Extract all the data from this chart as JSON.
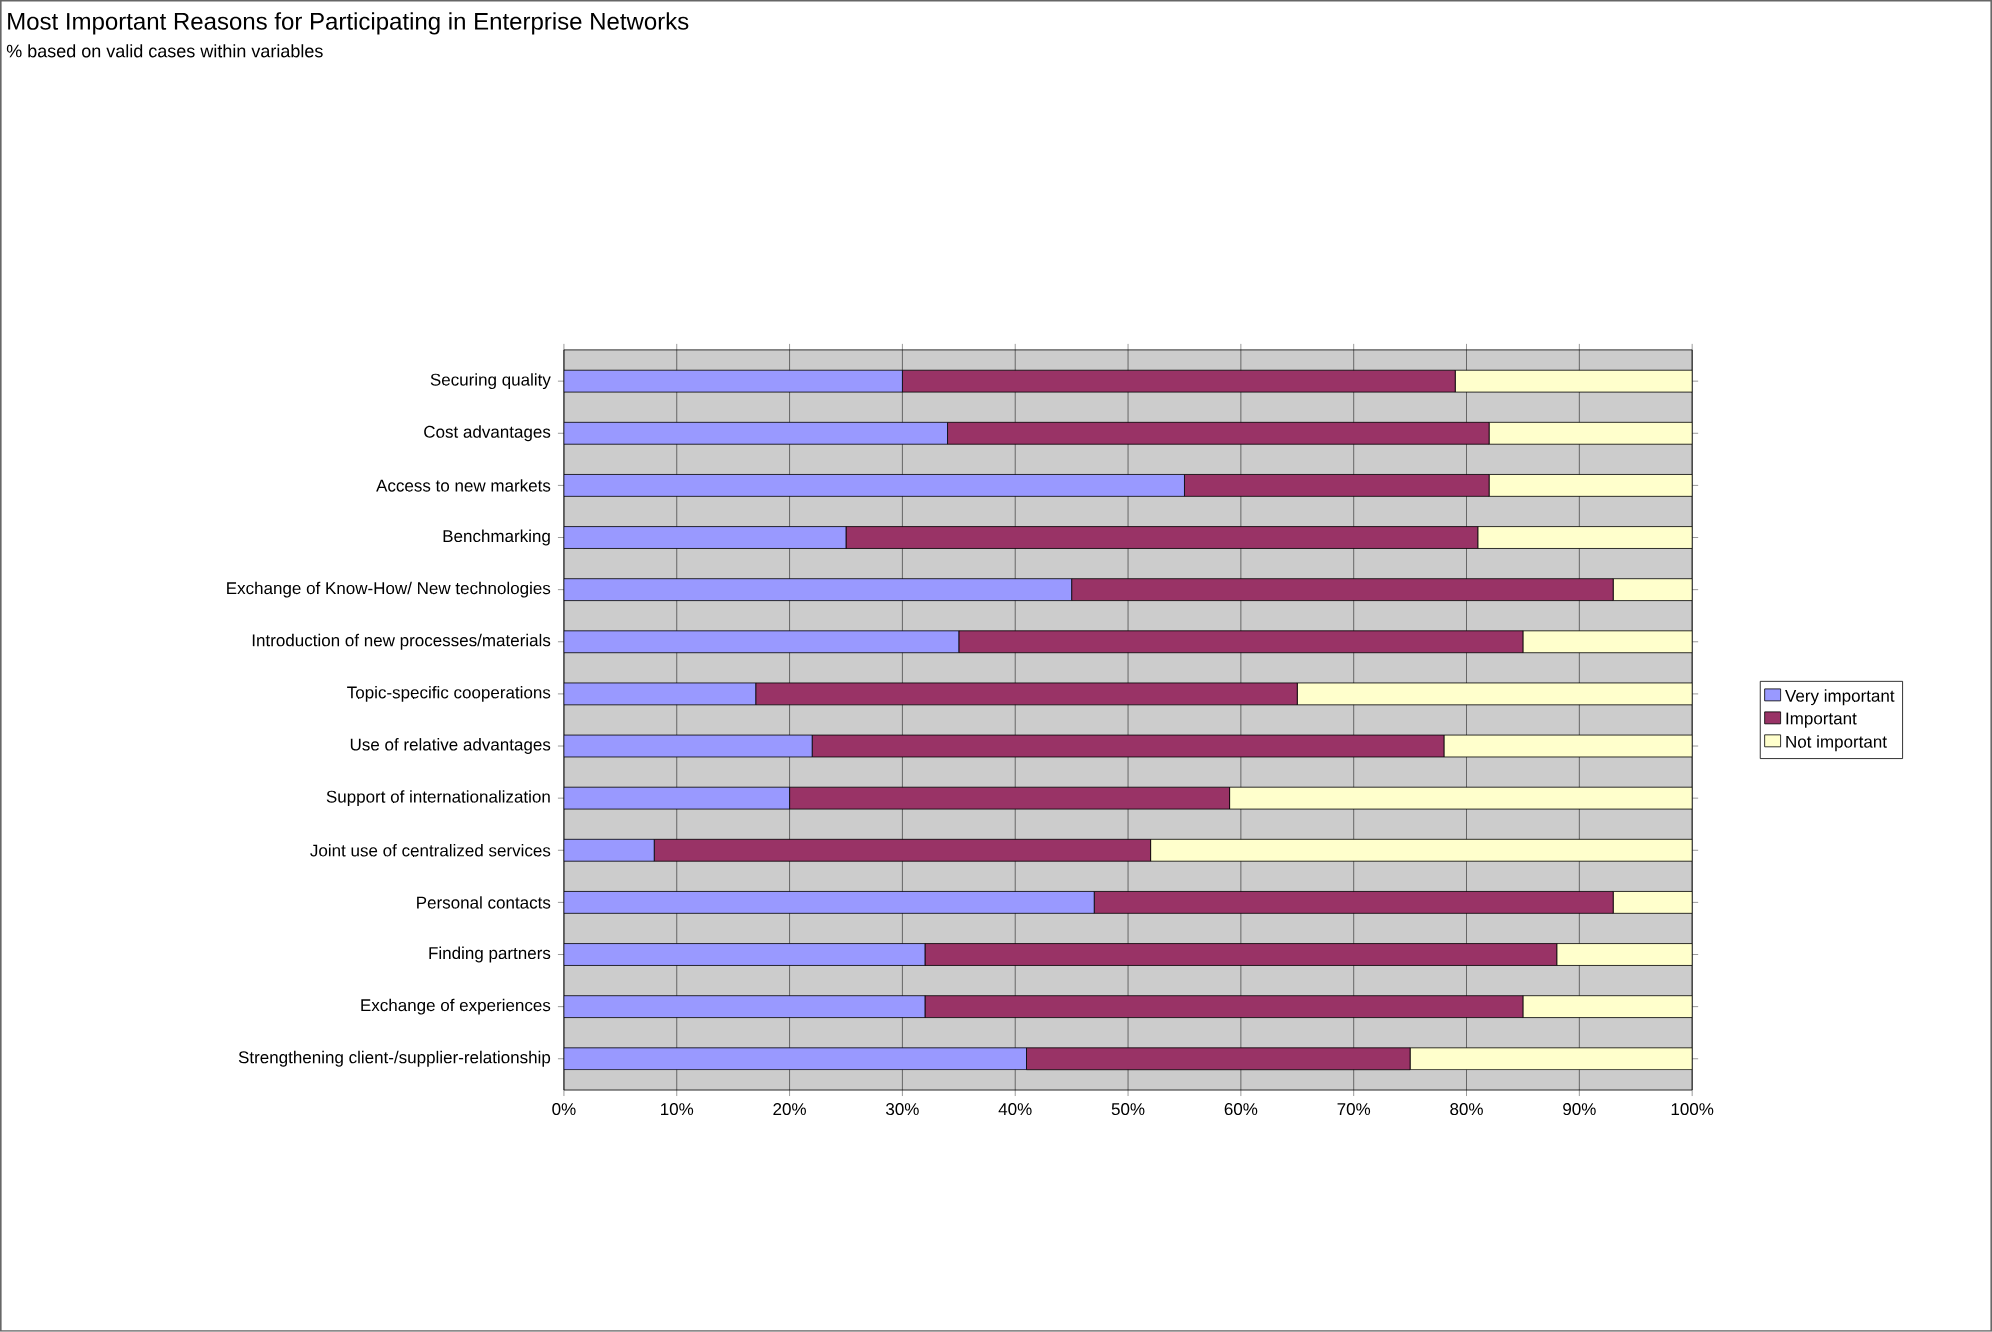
{
  "chart_data": {
    "type": "bar",
    "orientation": "horizontal",
    "stacked": true,
    "title": "Most Important Reasons for Participating in Enterprise Networks",
    "subtitle": "% based on valid cases within variables",
    "categories": [
      "Securing quality",
      "Cost advantages",
      "Access to new markets",
      "Benchmarking",
      "Exchange of Know-How/ New technologies",
      "Introduction of new processes/materials",
      "Topic-specific cooperations",
      "Use of relative advantages",
      "Support of internationalization",
      "Joint use of centralized services",
      "Personal contacts",
      "Finding partners",
      "Exchange of experiences",
      "Strengthening client-/supplier-relationship"
    ],
    "series": [
      {
        "name": "Very important",
        "color": "#9999ff",
        "values": [
          30,
          34,
          55,
          25,
          45,
          35,
          17,
          22,
          20,
          8,
          47,
          32,
          32,
          41
        ]
      },
      {
        "name": "Important",
        "color": "#993366",
        "values": [
          49,
          48,
          27,
          56,
          48,
          50,
          48,
          56,
          39,
          44,
          46,
          56,
          53,
          34
        ]
      },
      {
        "name": "Not important",
        "color": "#ffffcc",
        "values": [
          21,
          18,
          18,
          19,
          7,
          15,
          35,
          22,
          41,
          48,
          7,
          12,
          15,
          25
        ]
      }
    ],
    "xlim": [
      0,
      100
    ],
    "xticks": [
      {
        "value": 0,
        "label": "0%"
      },
      {
        "value": 10,
        "label": "10%"
      },
      {
        "value": 20,
        "label": "20%"
      },
      {
        "value": 30,
        "label": "30%"
      },
      {
        "value": 40,
        "label": "40%"
      },
      {
        "value": 50,
        "label": "50%"
      },
      {
        "value": 60,
        "label": "60%"
      },
      {
        "value": 70,
        "label": "70%"
      },
      {
        "value": 80,
        "label": "80%"
      },
      {
        "value": 90,
        "label": "90%"
      },
      {
        "value": 100,
        "label": "100%"
      }
    ],
    "grid": "x",
    "legend": "right"
  }
}
